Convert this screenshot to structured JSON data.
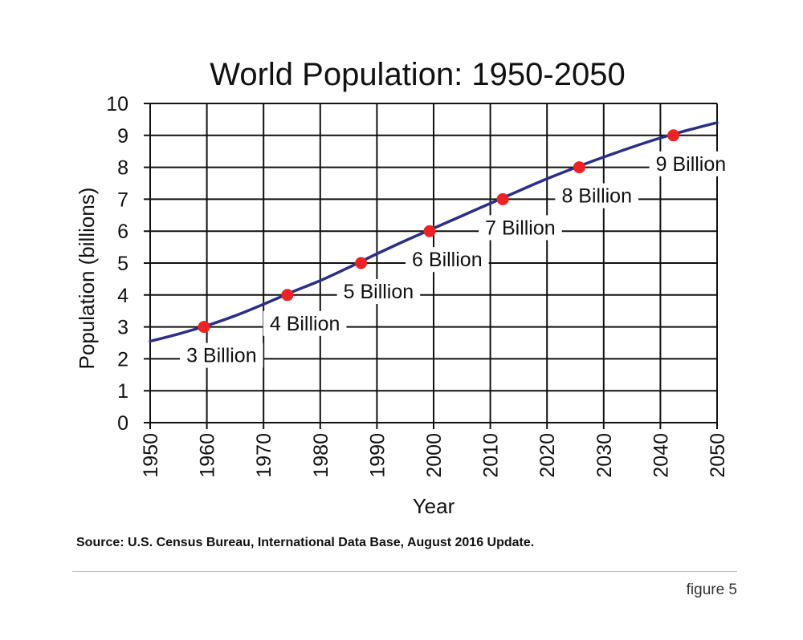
{
  "chart_data": {
    "type": "line",
    "title": "World Population: 1950-2050",
    "xlabel": "Year",
    "ylabel": "Population  (billions)",
    "xlim": [
      1950,
      2050
    ],
    "ylim": [
      0,
      10
    ],
    "x_ticks": [
      "1950",
      "1960",
      "1970",
      "1980",
      "1990",
      "2000",
      "2010",
      "2020",
      "2030",
      "2040",
      "2050"
    ],
    "y_ticks": [
      "0",
      "1",
      "2",
      "3",
      "4",
      "5",
      "6",
      "7",
      "8",
      "9",
      "10"
    ],
    "grid": true,
    "series": [
      {
        "color": "#2b2f87",
        "x": [
          1950,
          1955,
          1960,
          1965,
          1970,
          1975,
          1980,
          1985,
          1990,
          1995,
          2000,
          2005,
          2010,
          2015,
          2020,
          2025,
          2030,
          2035,
          2040,
          2045,
          2050
        ],
        "values": [
          2.55,
          2.78,
          3.04,
          3.35,
          3.71,
          4.09,
          4.45,
          4.86,
          5.29,
          5.7,
          6.09,
          6.48,
          6.87,
          7.26,
          7.64,
          7.99,
          8.32,
          8.63,
          8.92,
          9.17,
          9.4
        ]
      }
    ],
    "milestones": {
      "color": "#ee2222",
      "points": [
        {
          "year": 1959.5,
          "value": 3,
          "label": "3 Billion"
        },
        {
          "year": 1974.2,
          "value": 4,
          "label": "4 Billion"
        },
        {
          "year": 1987.2,
          "value": 5,
          "label": "5 Billion"
        },
        {
          "year": 1999.3,
          "value": 6,
          "label": "6 Billion"
        },
        {
          "year": 2012.2,
          "value": 7,
          "label": "7 Billion"
        },
        {
          "year": 2025.7,
          "value": 8,
          "label": "8 Billion"
        },
        {
          "year": 2042.3,
          "value": 9,
          "label": "9 Billion"
        }
      ]
    }
  },
  "source": "Source: U.S.  Census Bureau, International Data Base, August 2016 Update.",
  "figure_label": "figure 5"
}
